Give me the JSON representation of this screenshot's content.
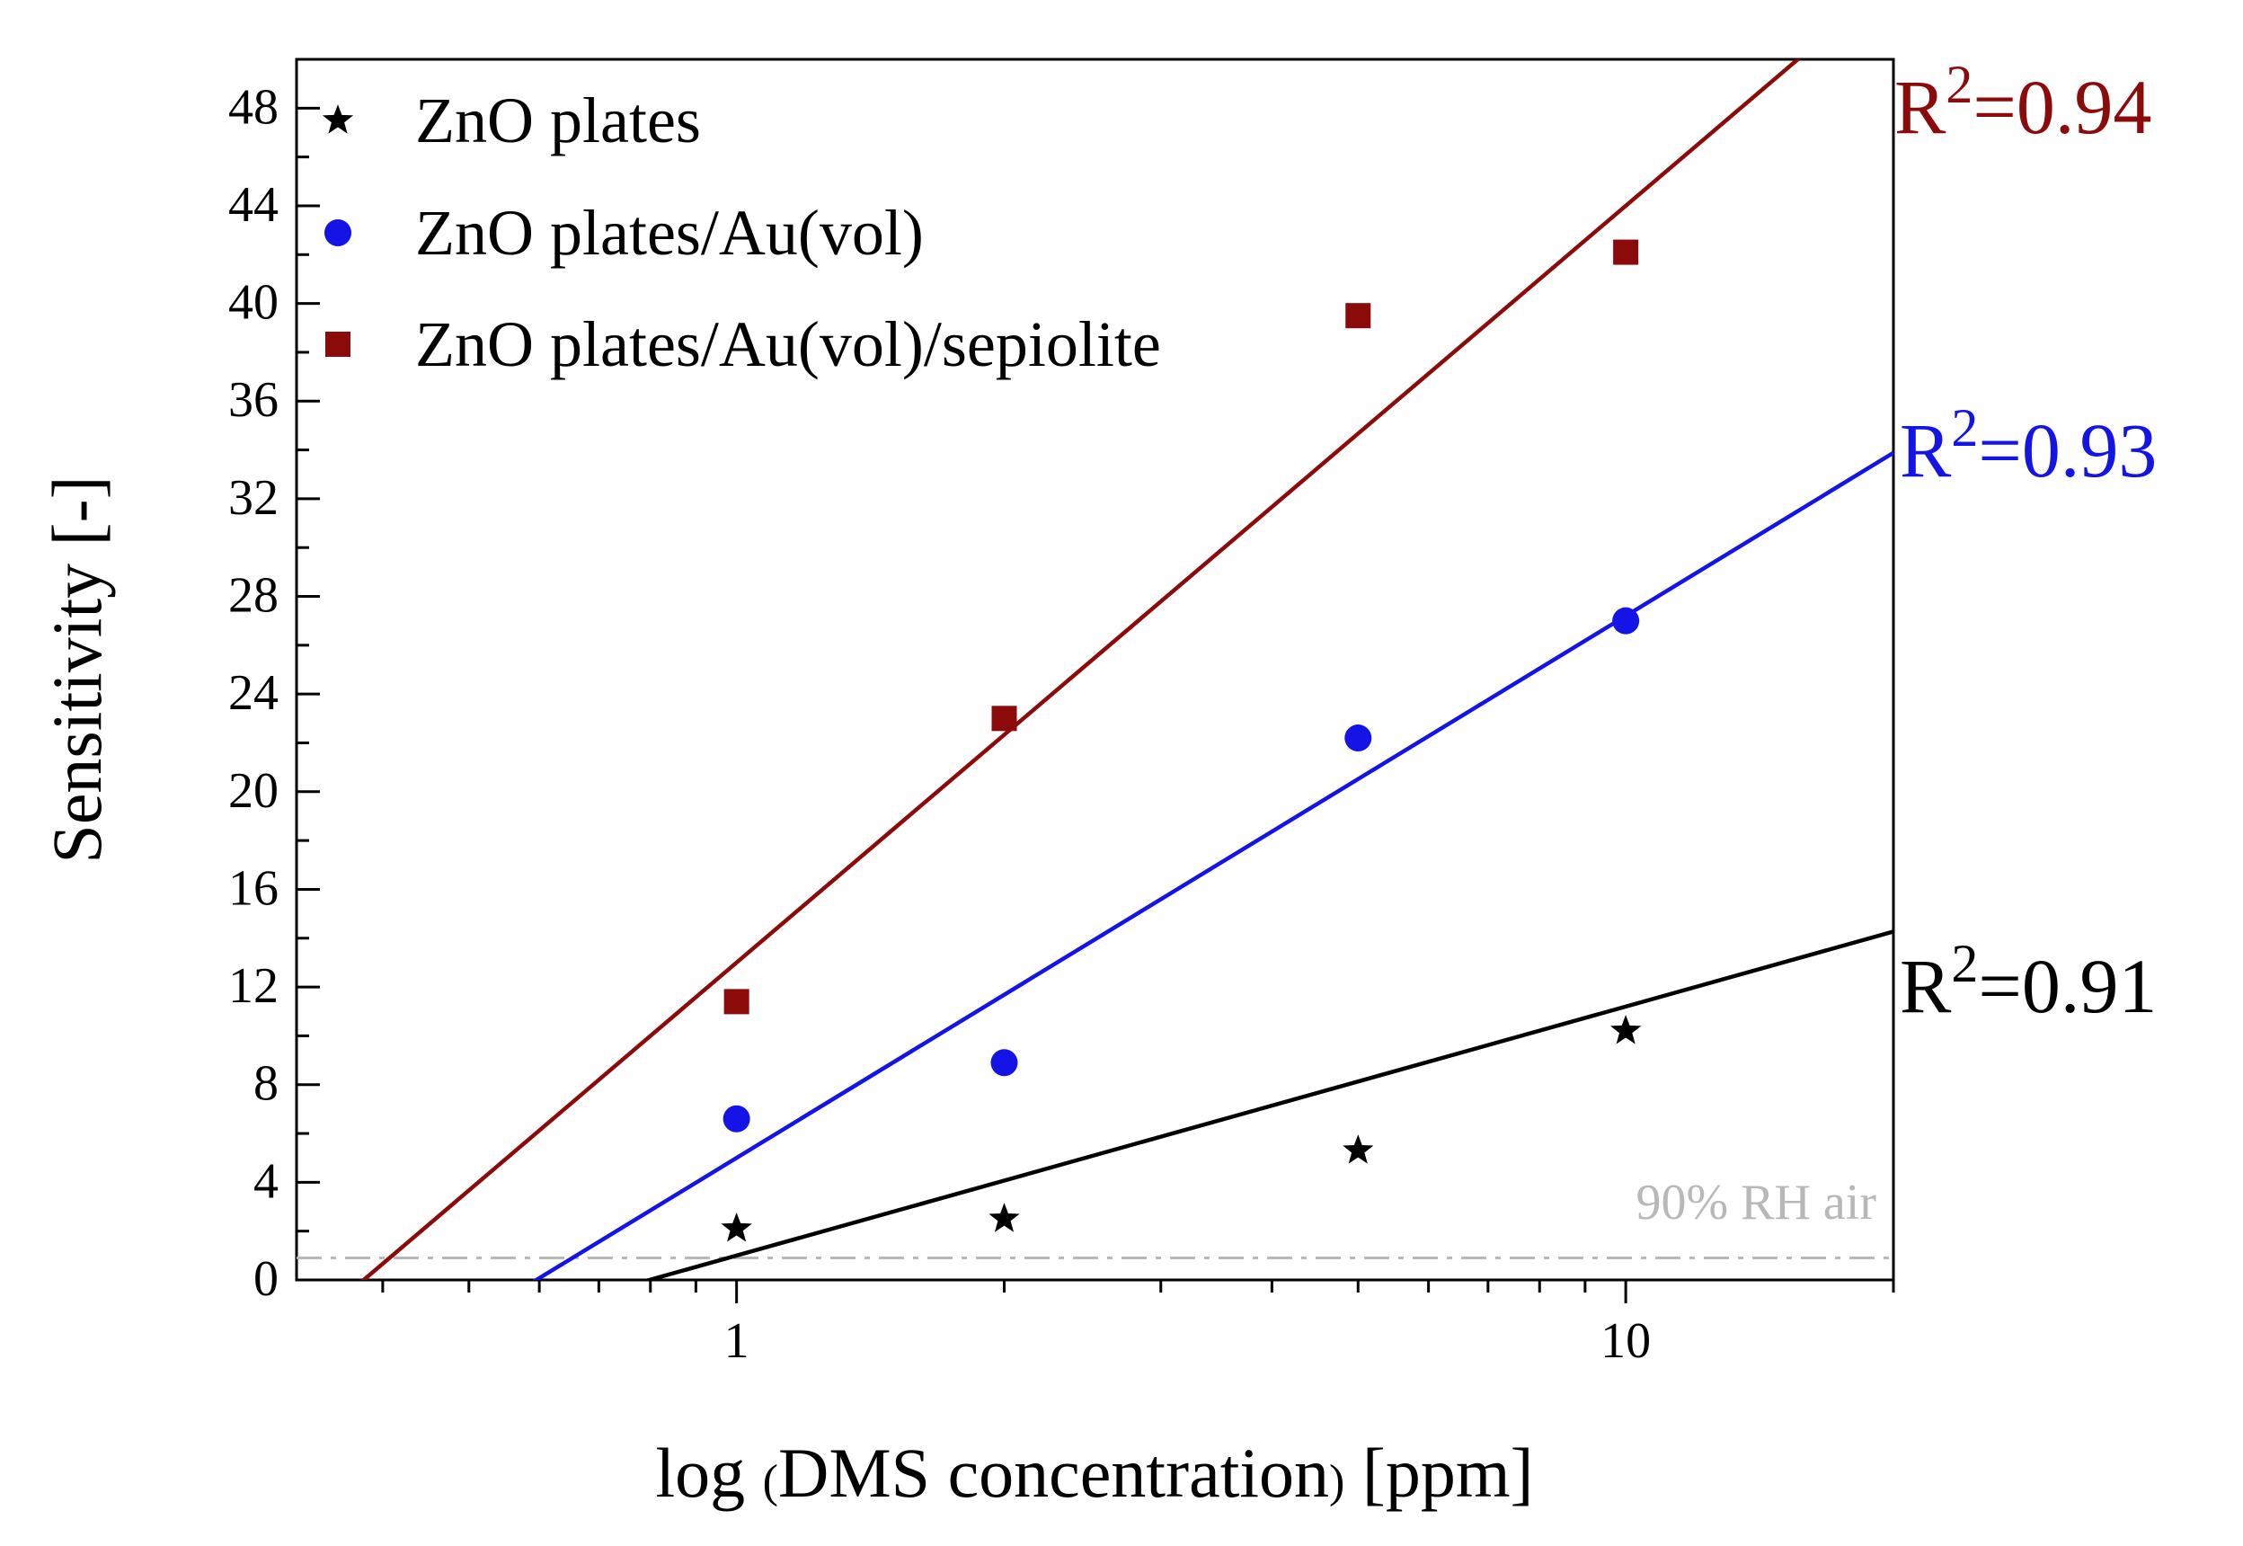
{
  "chart_data": {
    "type": "scatter",
    "title": "",
    "xlabel": {
      "pre": "log ",
      "paren_open": "(",
      "main": "DMS concentration",
      "paren_close": ")",
      "post": " [ppm]"
    },
    "ylabel": "Sensitivity [-]",
    "xscale": "log",
    "xlim": [
      0.32,
      20
    ],
    "ylim": [
      0,
      50
    ],
    "x_ticks": [
      1,
      10
    ],
    "x_tick_labels": [
      "1",
      "10"
    ],
    "y_ticks": [
      0,
      4,
      8,
      12,
      16,
      20,
      24,
      28,
      32,
      36,
      40,
      44,
      48
    ],
    "y_tick_labels": [
      "0",
      "4",
      "8",
      "12",
      "16",
      "20",
      "24",
      "28",
      "32",
      "36",
      "40",
      "44",
      "48"
    ],
    "legend_position": "top-left",
    "reference_line": {
      "label": "90% RH air",
      "y": 0.9,
      "color": "#b8b8b8"
    },
    "series": [
      {
        "name": "ZnO plates",
        "marker": "star",
        "color": "#000000",
        "x": [
          1,
          2,
          5,
          10
        ],
        "y": [
          2.1,
          2.5,
          5.3,
          10.2
        ],
        "fit": {
          "slope": 10.2,
          "intercept": 1.0
        },
        "r2_label": {
          "base": "R",
          "sup": "2",
          "text": "=0.91"
        }
      },
      {
        "name": "ZnO plates/Au(vol)",
        "marker": "circle",
        "color": "#1414e6",
        "x": [
          1,
          2,
          5,
          10
        ],
        "y": [
          6.6,
          8.9,
          22.2,
          27.0
        ],
        "fit": {
          "slope": 22.2,
          "intercept": 5.0
        },
        "r2_label": {
          "base": "R",
          "sup": "2",
          "text": "=0.93"
        }
      },
      {
        "name": "ZnO plates/Au(vol)/sepiolite",
        "marker": "square",
        "color": "#8b0a0a",
        "x": [
          1,
          2,
          5,
          10
        ],
        "y": [
          11.4,
          23.0,
          39.5,
          42.1
        ],
        "fit": {
          "slope": 31.0,
          "intercept": 13.0
        },
        "r2_label": {
          "base": "R",
          "sup": "2",
          "text": "=0.94"
        }
      }
    ]
  }
}
